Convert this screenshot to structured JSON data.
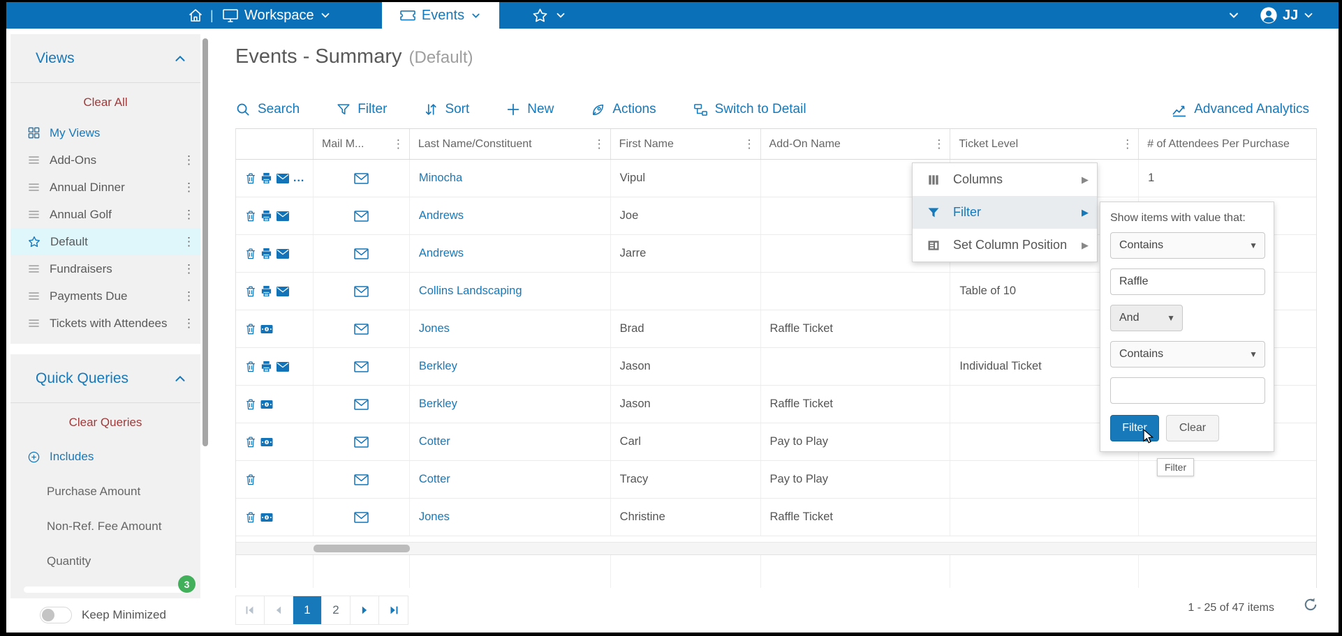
{
  "topbar": {
    "workspace_label": "Workspace",
    "events_tab_label": "Events",
    "user_initials": "JJ"
  },
  "sidebar": {
    "views_title": "Views",
    "views_clear": "Clear All",
    "view_items": [
      {
        "label": "My Views",
        "icon": "grid",
        "selected": false
      },
      {
        "label": "Add-Ons",
        "icon": "list",
        "selected": false
      },
      {
        "label": "Annual Dinner",
        "icon": "list",
        "selected": false
      },
      {
        "label": "Annual Golf",
        "icon": "list",
        "selected": false
      },
      {
        "label": "Default",
        "icon": "star",
        "selected": true
      },
      {
        "label": "Fundraisers",
        "icon": "list",
        "selected": false
      },
      {
        "label": "Payments Due",
        "icon": "list",
        "selected": false
      },
      {
        "label": "Tickets with Attendees",
        "icon": "list",
        "selected": false
      }
    ],
    "quick_queries_title": "Quick Queries",
    "queries_clear": "Clear Queries",
    "query_items": [
      {
        "label": "Includes",
        "icon": "circle-plus"
      },
      {
        "label": "Purchase Amount",
        "icon": ""
      },
      {
        "label": "Non-Ref. Fee Amount",
        "icon": ""
      },
      {
        "label": "Quantity",
        "icon": ""
      }
    ],
    "badge_count": "3",
    "keep_minimized_label": "Keep Minimized"
  },
  "main": {
    "title": "Events - Summary",
    "subtitle": "(Default)",
    "toolbar": [
      {
        "label": "Search",
        "icon": "search-icon"
      },
      {
        "label": "Filter",
        "icon": "funnel-icon"
      },
      {
        "label": "Sort",
        "icon": "sort-icon"
      },
      {
        "label": "New",
        "icon": "plus-icon"
      },
      {
        "label": "Actions",
        "icon": "rocket-icon"
      },
      {
        "label": "Switch to Detail",
        "icon": "switch-icon"
      }
    ],
    "advanced_analytics": "Advanced Analytics"
  },
  "table": {
    "columns": [
      "",
      "Mail M...",
      "Last Name/Constituent",
      "First Name",
      "Add-On Name",
      "Ticket Level",
      "# of Attendees Per Purchase"
    ],
    "rows": [
      {
        "actions": [
          "delete",
          "print",
          "email",
          "more"
        ],
        "mail": true,
        "last": "Minocha",
        "first": "Vipul",
        "addon": "",
        "ticket": "",
        "attendees": "1"
      },
      {
        "actions": [
          "delete",
          "print",
          "email"
        ],
        "mail": true,
        "last": "Andrews",
        "first": "Joe",
        "addon": "",
        "ticket": "",
        "attendees": ""
      },
      {
        "actions": [
          "delete",
          "print",
          "email"
        ],
        "mail": true,
        "last": "Andrews",
        "first": "Jarre",
        "addon": "",
        "ticket": "",
        "attendees": ""
      },
      {
        "actions": [
          "delete",
          "print",
          "email"
        ],
        "mail": true,
        "last": "Collins Landscaping",
        "first": "",
        "addon": "",
        "ticket": "Table of 10",
        "attendees": ""
      },
      {
        "actions": [
          "delete",
          "money"
        ],
        "mail": true,
        "last": "Jones",
        "first": "Brad",
        "addon": "Raffle Ticket",
        "ticket": "",
        "attendees": ""
      },
      {
        "actions": [
          "delete",
          "print",
          "email"
        ],
        "mail": true,
        "last": "Berkley",
        "first": "Jason",
        "addon": "",
        "ticket": "Individual Ticket",
        "attendees": ""
      },
      {
        "actions": [
          "delete",
          "money"
        ],
        "mail": true,
        "last": "Berkley",
        "first": "Jason",
        "addon": "Raffle Ticket",
        "ticket": "",
        "attendees": ""
      },
      {
        "actions": [
          "delete",
          "money"
        ],
        "mail": true,
        "last": "Cotter",
        "first": "Carl",
        "addon": "Pay to Play",
        "ticket": "",
        "attendees": ""
      },
      {
        "actions": [
          "delete"
        ],
        "mail": true,
        "last": "Cotter",
        "first": "Tracy",
        "addon": "Pay to Play",
        "ticket": "",
        "attendees": ""
      },
      {
        "actions": [
          "delete",
          "money"
        ],
        "mail": true,
        "last": "Jones",
        "first": "Christine",
        "addon": "Raffle Ticket",
        "ticket": "",
        "attendees": ""
      }
    ]
  },
  "context_menu": {
    "items": [
      {
        "label": "Columns",
        "icon": "columns-icon",
        "active": false
      },
      {
        "label": "Filter",
        "icon": "filter-icon",
        "active": true
      },
      {
        "label": "Set Column Position",
        "icon": "column-position-icon",
        "active": false
      }
    ]
  },
  "filter_popup": {
    "title": "Show items with value that:",
    "operator1": "Contains",
    "value1": "Raffle",
    "logic": "And",
    "operator2": "Contains",
    "value2": "",
    "filter_button": "Filter",
    "clear_button": "Clear",
    "tooltip": "Filter"
  },
  "pagination": {
    "pages": [
      "1",
      "2"
    ],
    "active_page": "1",
    "info": "1 - 25 of 47 items"
  },
  "colors": {
    "topbar_blue": "#0A71B9",
    "accent_blue": "#1779BA",
    "icon_blue": "#1273B8",
    "clear_red": "#A13A3A",
    "selected_view_bg": "#DFF6FB",
    "badge_green": "#42AF5B"
  }
}
